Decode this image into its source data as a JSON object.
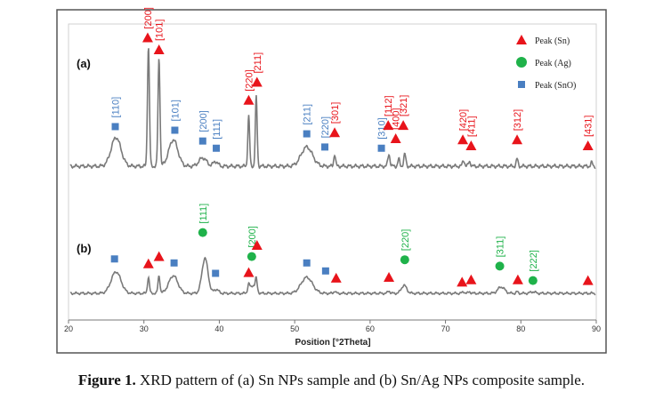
{
  "caption": {
    "label": "Figure 1.",
    "text": "XRD pattern of (a) Sn NPs sample and (b) Sn/Ag NPs composite sample."
  },
  "chart_data": {
    "type": "line",
    "xlabel": "Position [°2Theta]",
    "xlim": [
      20,
      90
    ],
    "xticks": [
      20,
      30,
      40,
      50,
      60,
      70,
      80,
      90
    ],
    "grid": false,
    "legend_position": "top-right",
    "legend": [
      {
        "name": "Peak (Sn)",
        "marker": "triangle",
        "color": "#e8141b"
      },
      {
        "name": "Peak (Ag)",
        "marker": "circle",
        "color": "#1fb24a"
      },
      {
        "name": "Peak (SnO)",
        "marker": "square",
        "color": "#4a7fc1"
      }
    ],
    "panels": [
      {
        "label": "(a)",
        "baseline": 0.0,
        "peaks": [
          {
            "x": 26.3,
            "h": 0.24,
            "w": 0.65
          },
          {
            "x": 30.6,
            "h": 1.0,
            "w": 0.13
          },
          {
            "x": 32.0,
            "h": 0.9,
            "w": 0.13
          },
          {
            "x": 33.9,
            "h": 0.22,
            "w": 0.6
          },
          {
            "x": 37.8,
            "h": 0.07,
            "w": 0.5
          },
          {
            "x": 39.5,
            "h": 0.04,
            "w": 0.3
          },
          {
            "x": 43.9,
            "h": 0.42,
            "w": 0.12
          },
          {
            "x": 44.9,
            "h": 0.58,
            "w": 0.12
          },
          {
            "x": 51.6,
            "h": 0.16,
            "w": 0.75
          },
          {
            "x": 55.3,
            "h": 0.1,
            "w": 0.12
          },
          {
            "x": 62.5,
            "h": 0.1,
            "w": 0.14
          },
          {
            "x": 63.8,
            "h": 0.06,
            "w": 0.12
          },
          {
            "x": 64.6,
            "h": 0.1,
            "w": 0.14
          },
          {
            "x": 72.4,
            "h": 0.05,
            "w": 0.14
          },
          {
            "x": 73.2,
            "h": 0.04,
            "w": 0.14
          },
          {
            "x": 79.5,
            "h": 0.06,
            "w": 0.12
          },
          {
            "x": 89.4,
            "h": 0.03,
            "w": 0.12
          }
        ],
        "markers": [
          {
            "x": 26.2,
            "type": "SnO",
            "label": "[110]",
            "h": 0.33
          },
          {
            "x": 30.5,
            "type": "Sn",
            "label": "[200]",
            "h": 1.07
          },
          {
            "x": 32.0,
            "type": "Sn",
            "label": "[101]",
            "h": 0.97
          },
          {
            "x": 34.1,
            "type": "SnO",
            "label": "[101]",
            "h": 0.3
          },
          {
            "x": 37.8,
            "type": "SnO",
            "label": "[200]",
            "h": 0.21
          },
          {
            "x": 39.6,
            "type": "SnO",
            "label": "[111]",
            "h": 0.15
          },
          {
            "x": 43.9,
            "type": "Sn",
            "label": "[220]",
            "h": 0.55
          },
          {
            "x": 45.0,
            "type": "Sn",
            "label": "[211]",
            "h": 0.7
          },
          {
            "x": 51.6,
            "type": "SnO",
            "label": "[211]",
            "h": 0.27
          },
          {
            "x": 54.0,
            "type": "SnO",
            "label": "[220]",
            "h": 0.16
          },
          {
            "x": 55.3,
            "type": "Sn",
            "label": "[301]",
            "h": 0.28
          },
          {
            "x": 61.5,
            "type": "SnO",
            "label": "[310]",
            "h": 0.15
          },
          {
            "x": 62.4,
            "type": "Sn",
            "label": "[112]",
            "h": 0.34
          },
          {
            "x": 63.4,
            "type": "Sn",
            "label": "[400]",
            "h": 0.23
          },
          {
            "x": 64.4,
            "type": "Sn",
            "label": "[321]",
            "h": 0.34
          },
          {
            "x": 72.3,
            "type": "Sn",
            "label": "[420]",
            "h": 0.22
          },
          {
            "x": 73.4,
            "type": "Sn",
            "label": "[411]",
            "h": 0.17
          },
          {
            "x": 79.5,
            "type": "Sn",
            "label": "[312]",
            "h": 0.22
          },
          {
            "x": 88.9,
            "type": "Sn",
            "label": "[431]",
            "h": 0.17
          }
        ]
      },
      {
        "label": "(b)",
        "baseline": 0.0,
        "peaks": [
          {
            "x": 26.3,
            "h": 0.27,
            "w": 0.65
          },
          {
            "x": 30.6,
            "h": 0.2,
            "w": 0.13
          },
          {
            "x": 32.0,
            "h": 0.22,
            "w": 0.13
          },
          {
            "x": 33.9,
            "h": 0.22,
            "w": 0.6
          },
          {
            "x": 38.1,
            "h": 0.44,
            "w": 0.4
          },
          {
            "x": 39.6,
            "h": 0.05,
            "w": 0.3
          },
          {
            "x": 43.9,
            "h": 0.1,
            "w": 0.14
          },
          {
            "x": 44.5,
            "h": 0.1,
            "w": 0.35
          },
          {
            "x": 44.9,
            "h": 0.14,
            "w": 0.12
          },
          {
            "x": 51.6,
            "h": 0.2,
            "w": 0.75
          },
          {
            "x": 55.3,
            "h": 0.03,
            "w": 0.12
          },
          {
            "x": 62.5,
            "h": 0.03,
            "w": 0.15
          },
          {
            "x": 64.5,
            "h": 0.1,
            "w": 0.35
          },
          {
            "x": 72.4,
            "h": 0.02,
            "w": 0.15
          },
          {
            "x": 73.2,
            "h": 0.02,
            "w": 0.15
          },
          {
            "x": 77.4,
            "h": 0.08,
            "w": 0.45
          },
          {
            "x": 79.5,
            "h": 0.02,
            "w": 0.12
          },
          {
            "x": 81.6,
            "h": 0.02,
            "w": 0.3
          }
        ],
        "markers": [
          {
            "x": 26.1,
            "type": "SnO",
            "h": 0.43
          },
          {
            "x": 30.6,
            "type": "Sn",
            "h": 0.37
          },
          {
            "x": 32.0,
            "type": "Sn",
            "h": 0.46
          },
          {
            "x": 34.0,
            "type": "SnO",
            "h": 0.38
          },
          {
            "x": 37.8,
            "type": "Ag",
            "label": "[111]",
            "h": 0.76
          },
          {
            "x": 39.5,
            "type": "SnO",
            "h": 0.25
          },
          {
            "x": 43.9,
            "type": "Sn",
            "h": 0.26
          },
          {
            "x": 44.3,
            "type": "Ag",
            "label": "[200]",
            "h": 0.46
          },
          {
            "x": 45.0,
            "type": "Sn",
            "h": 0.6
          },
          {
            "x": 51.6,
            "type": "SnO",
            "h": 0.38
          },
          {
            "x": 54.1,
            "type": "SnO",
            "h": 0.28
          },
          {
            "x": 55.5,
            "type": "Sn",
            "h": 0.19
          },
          {
            "x": 62.5,
            "type": "Sn",
            "h": 0.2
          },
          {
            "x": 64.6,
            "type": "Ag",
            "label": "[220]",
            "h": 0.42
          },
          {
            "x": 72.2,
            "type": "Sn",
            "h": 0.14
          },
          {
            "x": 73.4,
            "type": "Sn",
            "h": 0.17
          },
          {
            "x": 77.2,
            "type": "Ag",
            "label": "[311]",
            "h": 0.34
          },
          {
            "x": 79.6,
            "type": "Sn",
            "h": 0.17
          },
          {
            "x": 81.6,
            "type": "Ag",
            "label": "[222]",
            "h": 0.16
          },
          {
            "x": 88.9,
            "type": "Sn",
            "h": 0.16
          }
        ]
      }
    ]
  }
}
